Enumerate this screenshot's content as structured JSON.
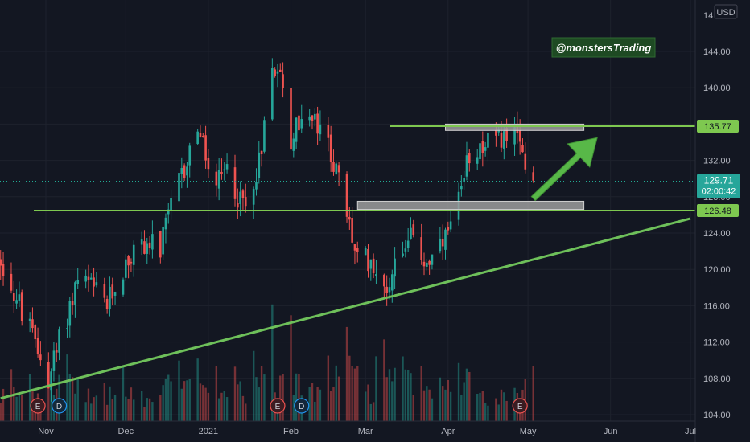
{
  "chart_data": {
    "type": "candlestick",
    "watermark": "@monstersTrading",
    "currency": "USD",
    "x_ticks": [
      "Nov",
      "Dec",
      "2021",
      "Feb",
      "Mar",
      "Apr",
      "May",
      "Jun",
      "Jul"
    ],
    "y_ticks": [
      "144.00",
      "140.00",
      "136.00",
      "132.00",
      "128.00",
      "124.00",
      "120.00",
      "116.00",
      "112.00",
      "108.00",
      "104.00"
    ],
    "y_range": [
      103.5,
      147.5
    ],
    "last_price": "129.71",
    "countdown": "02:00:42",
    "resistance_label": "135.77",
    "support_label": "126.48",
    "levels": {
      "resistance": 135.77,
      "support": 126.48
    },
    "trendline": {
      "from": [
        "2020-10-15",
        105.8
      ],
      "to": [
        "2021-07-01",
        125.6
      ]
    },
    "zones": [
      {
        "from": "2021-03-31",
        "to": "2021-05-22",
        "low": 135.3,
        "high": 136.0
      },
      {
        "from": "2021-02-26",
        "to": "2021-05-22",
        "low": 126.6,
        "high": 127.5
      }
    ],
    "projection_arrow": {
      "from": [
        "2021-05-03",
        127.8
      ],
      "to": [
        "2021-05-27",
        134.5
      ]
    },
    "events": [
      {
        "label": "E",
        "date": "2020-10-29",
        "kind": "earnings"
      },
      {
        "label": "D",
        "date": "2020-11-06",
        "kind": "dividend"
      },
      {
        "label": "E",
        "date": "2021-01-27",
        "kind": "earnings"
      },
      {
        "label": "D",
        "date": "2021-02-05",
        "kind": "dividend"
      },
      {
        "label": "E",
        "date": "2021-04-28",
        "kind": "earnings"
      }
    ],
    "price_path": [
      [
        "2020-10-15",
        121
      ],
      [
        "2020-10-22",
        116
      ],
      [
        "2020-10-29",
        111
      ],
      [
        "2020-11-02",
        108
      ],
      [
        "2020-11-06",
        112
      ],
      [
        "2020-11-10",
        116
      ],
      [
        "2020-11-13",
        119
      ],
      [
        "2020-11-18",
        118
      ],
      [
        "2020-11-24",
        116
      ],
      [
        "2020-11-30",
        120
      ],
      [
        "2020-12-04",
        122
      ],
      [
        "2020-12-09",
        123
      ],
      [
        "2020-12-14",
        122
      ],
      [
        "2020-12-18",
        127
      ],
      [
        "2020-12-23",
        131
      ],
      [
        "2020-12-28",
        136
      ],
      [
        "2020-12-31",
        132
      ],
      [
        "2021-01-04",
        129
      ],
      [
        "2021-01-08",
        131
      ],
      [
        "2021-01-12",
        128
      ],
      [
        "2021-01-15",
        127
      ],
      [
        "2021-01-20",
        132
      ],
      [
        "2021-01-25",
        142
      ],
      [
        "2021-01-27",
        143
      ],
      [
        "2021-02-01",
        134
      ],
      [
        "2021-02-05",
        137
      ],
      [
        "2021-02-10",
        136
      ],
      [
        "2021-02-16",
        133
      ],
      [
        "2021-02-22",
        126
      ],
      [
        "2021-02-26",
        121
      ],
      [
        "2021-03-04",
        121
      ],
      [
        "2021-03-08",
        117
      ],
      [
        "2021-03-12",
        121
      ],
      [
        "2021-03-17",
        124
      ],
      [
        "2021-03-23",
        121
      ],
      [
        "2021-03-26",
        121
      ],
      [
        "2021-03-31",
        123
      ],
      [
        "2021-04-06",
        128
      ],
      [
        "2021-04-09",
        133
      ],
      [
        "2021-04-14",
        134
      ],
      [
        "2021-04-19",
        134
      ],
      [
        "2021-04-23",
        135
      ],
      [
        "2021-04-27",
        134
      ],
      [
        "2021-04-29",
        133
      ],
      [
        "2021-05-03",
        129.7
      ]
    ],
    "volume_path": [
      [
        "2020-10-15",
        18
      ],
      [
        "2020-10-29",
        22
      ],
      [
        "2020-11-06",
        25
      ],
      [
        "2020-12-01",
        20
      ],
      [
        "2021-01-04",
        24
      ],
      [
        "2021-01-27",
        32
      ],
      [
        "2021-02-05",
        28
      ],
      [
        "2021-03-01",
        40
      ],
      [
        "2021-03-08",
        42
      ],
      [
        "2021-04-01",
        22
      ],
      [
        "2021-04-28",
        28
      ],
      [
        "2021-05-03",
        20
      ]
    ]
  }
}
